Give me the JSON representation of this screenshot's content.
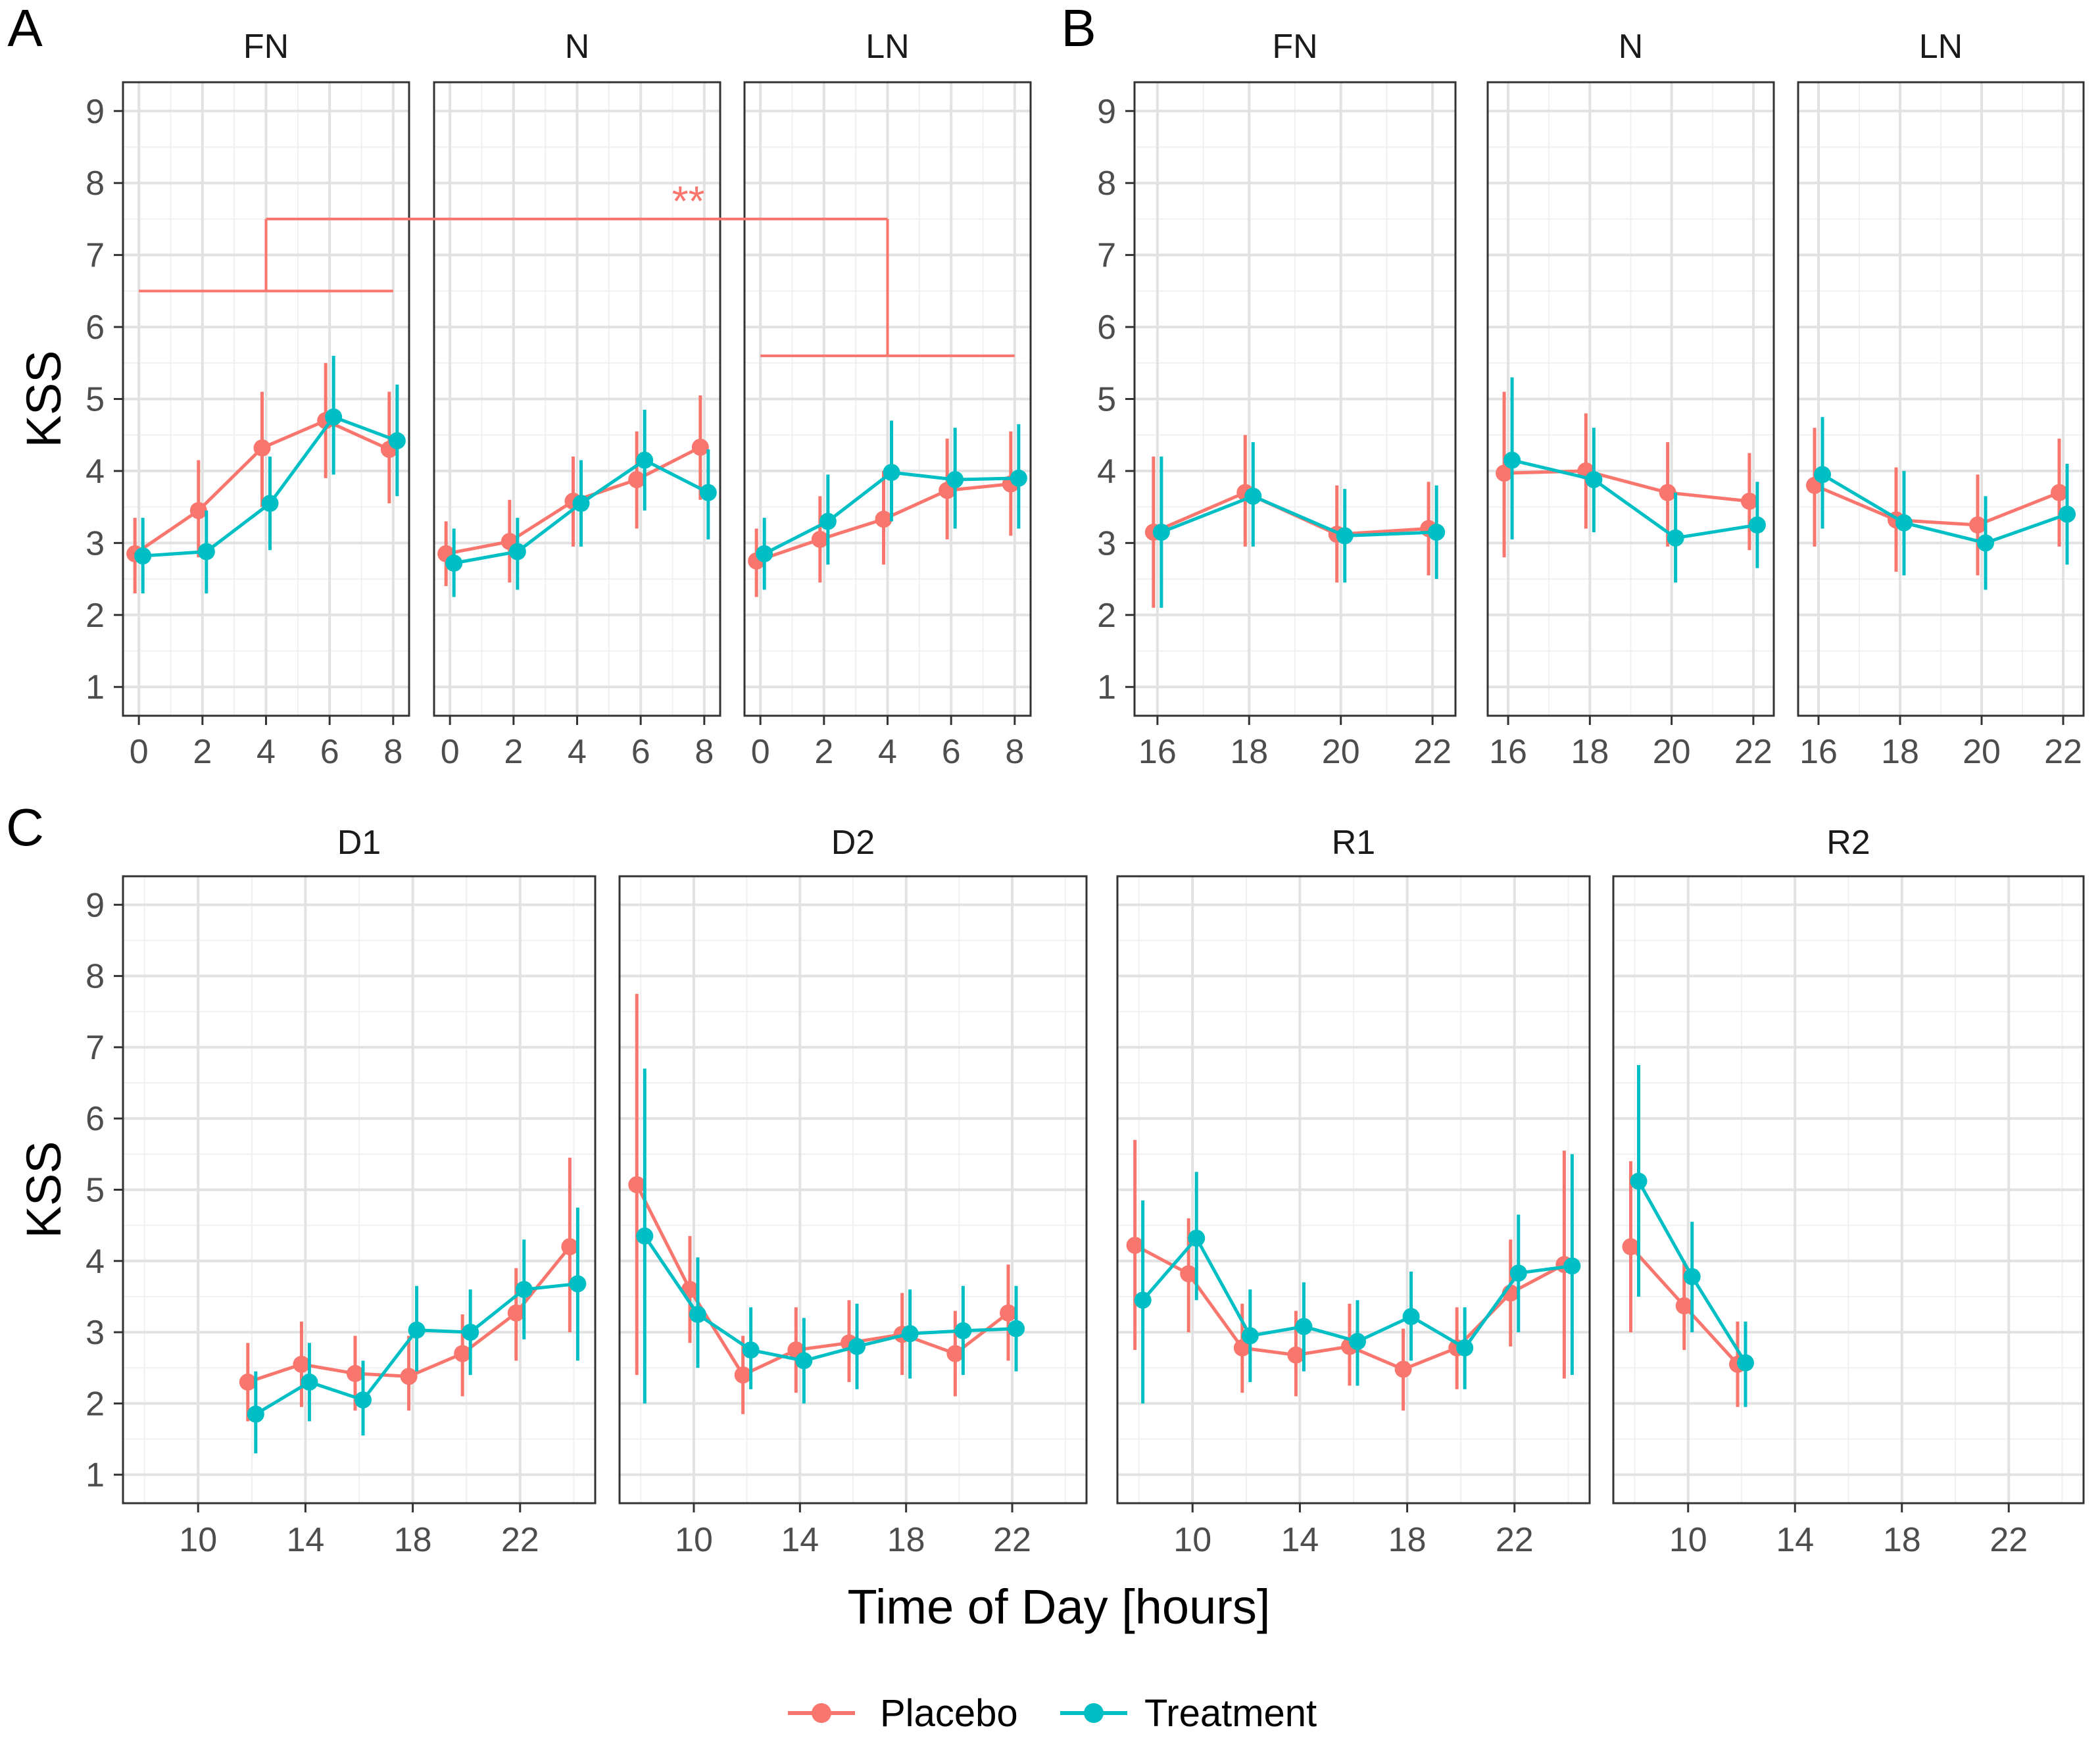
{
  "colors": {
    "placebo": "#F8766D",
    "treatment": "#00BFC4",
    "annotation": "#F8766D"
  },
  "legend": {
    "placebo": "Placebo",
    "treatment": "Treatment"
  },
  "y_axis": {
    "title": "KSS",
    "ticks": [
      "1",
      "2",
      "3",
      "4",
      "5",
      "6",
      "7",
      "8",
      "9"
    ]
  },
  "x_axis_title": "Time of Day [hours]",
  "chart_data": [
    {
      "type": "line",
      "panel": "A",
      "ylabel": "KSS",
      "ylim": [
        0.6,
        9.4
      ],
      "xlim": [
        -0.5,
        8.5
      ],
      "x_ticks": [
        0,
        2,
        4,
        6,
        8
      ],
      "facets": [
        {
          "name": "FN",
          "x": [
            0,
            2,
            4,
            6,
            8
          ],
          "series": [
            {
              "name": "Placebo",
              "values": [
                2.85,
                3.45,
                4.32,
                4.7,
                4.3
              ],
              "lower": [
                2.3,
                2.8,
                3.5,
                3.9,
                3.55
              ],
              "upper": [
                3.35,
                4.15,
                5.1,
                5.5,
                5.1
              ]
            },
            {
              "name": "Treatment",
              "values": [
                2.82,
                2.88,
                3.55,
                4.75,
                4.42
              ],
              "lower": [
                2.3,
                2.3,
                2.9,
                3.95,
                3.65
              ],
              "upper": [
                3.35,
                3.45,
                4.2,
                5.6,
                5.2
              ]
            }
          ]
        },
        {
          "name": "N",
          "x": [
            0,
            2,
            4,
            6,
            8
          ],
          "series": [
            {
              "name": "Placebo",
              "values": [
                2.85,
                3.02,
                3.58,
                3.88,
                4.33
              ],
              "lower": [
                2.4,
                2.45,
                2.95,
                3.2,
                3.6
              ],
              "upper": [
                3.3,
                3.6,
                4.2,
                4.55,
                5.05
              ]
            },
            {
              "name": "Treatment",
              "values": [
                2.72,
                2.88,
                3.55,
                4.15,
                3.7
              ],
              "lower": [
                2.25,
                2.35,
                2.95,
                3.45,
                3.05
              ],
              "upper": [
                3.2,
                3.35,
                4.15,
                4.85,
                4.3
              ]
            }
          ]
        },
        {
          "name": "LN",
          "x": [
            0,
            2,
            4,
            6,
            8
          ],
          "series": [
            {
              "name": "Placebo",
              "values": [
                2.75,
                3.05,
                3.33,
                3.73,
                3.82
              ],
              "lower": [
                2.25,
                2.45,
                2.7,
                3.05,
                3.1
              ],
              "upper": [
                3.2,
                3.65,
                4.0,
                4.45,
                4.55
              ]
            },
            {
              "name": "Treatment",
              "values": [
                2.85,
                3.3,
                3.98,
                3.88,
                3.9
              ],
              "lower": [
                2.35,
                2.7,
                3.3,
                3.2,
                3.2
              ],
              "upper": [
                3.35,
                3.95,
                4.7,
                4.6,
                4.65
              ]
            }
          ]
        }
      ],
      "annotations": [
        {
          "type": "bracket",
          "facet": "FN",
          "x_from": 0,
          "x_to": 8,
          "y": 6.5,
          "stem_x": 4,
          "stem_to": 7.5
        },
        {
          "type": "bracket",
          "facet": "LN",
          "x_from": 0,
          "x_to": 8,
          "y": 5.6,
          "stem_x": 4,
          "stem_to": 7.5
        },
        {
          "type": "span",
          "y": 7.5,
          "from_facet": "FN",
          "from_x": 4,
          "to_facet": "LN",
          "to_x": 4
        },
        {
          "type": "text",
          "text": "**",
          "facet": "N",
          "x": 7.5,
          "y": 7.75
        }
      ]
    },
    {
      "type": "line",
      "panel": "B",
      "ylabel": "",
      "ylim": [
        0.6,
        9.4
      ],
      "xlim": [
        15.5,
        22.5
      ],
      "x_ticks": [
        16,
        18,
        20,
        22
      ],
      "facets": [
        {
          "name": "FN",
          "x": [
            16,
            18,
            20,
            22
          ],
          "series": [
            {
              "name": "Placebo",
              "values": [
                3.15,
                3.7,
                3.12,
                3.2
              ],
              "lower": [
                2.1,
                2.95,
                2.45,
                2.55
              ],
              "upper": [
                4.2,
                4.5,
                3.8,
                3.85
              ]
            },
            {
              "name": "Treatment",
              "values": [
                3.15,
                3.65,
                3.1,
                3.15
              ],
              "lower": [
                2.1,
                2.95,
                2.45,
                2.5
              ],
              "upper": [
                4.2,
                4.4,
                3.75,
                3.8
              ]
            }
          ]
        },
        {
          "name": "N",
          "x": [
            16,
            18,
            20,
            22
          ],
          "series": [
            {
              "name": "Placebo",
              "values": [
                3.97,
                4.0,
                3.7,
                3.58
              ],
              "lower": [
                2.8,
                3.2,
                2.95,
                2.9
              ],
              "upper": [
                5.1,
                4.8,
                4.4,
                4.25
              ]
            },
            {
              "name": "Treatment",
              "values": [
                4.15,
                3.88,
                3.07,
                3.25
              ],
              "lower": [
                3.05,
                3.15,
                2.45,
                2.65
              ],
              "upper": [
                5.3,
                4.6,
                3.7,
                3.85
              ]
            }
          ]
        },
        {
          "name": "LN",
          "x": [
            16,
            18,
            20,
            22
          ],
          "series": [
            {
              "name": "Placebo",
              "values": [
                3.8,
                3.32,
                3.25,
                3.7
              ],
              "lower": [
                2.95,
                2.6,
                2.55,
                2.95
              ],
              "upper": [
                4.6,
                4.05,
                3.95,
                4.45
              ]
            },
            {
              "name": "Treatment",
              "values": [
                3.95,
                3.28,
                3.0,
                3.4
              ],
              "lower": [
                3.2,
                2.55,
                2.35,
                2.7
              ],
              "upper": [
                4.75,
                4.0,
                3.65,
                4.1
              ]
            }
          ]
        }
      ]
    },
    {
      "type": "line",
      "panel": "C",
      "ylabel": "KSS",
      "xlabel": "Time of Day [hours]",
      "ylim": [
        0.6,
        9.4
      ],
      "xlim": [
        7.2,
        24.8
      ],
      "x_ticks": [
        10,
        14,
        18,
        22
      ],
      "facets": [
        {
          "name": "D1",
          "x": [
            12,
            14,
            16,
            18,
            20,
            22,
            24
          ],
          "series": [
            {
              "name": "Placebo",
              "values": [
                2.3,
                2.55,
                2.42,
                2.38,
                2.7,
                3.27,
                4.2
              ],
              "lower": [
                1.75,
                1.95,
                1.9,
                1.9,
                2.1,
                2.6,
                3.0
              ],
              "upper": [
                2.85,
                3.15,
                2.95,
                2.95,
                3.25,
                3.9,
                5.45
              ]
            },
            {
              "name": "Treatment",
              "values": [
                1.85,
                2.3,
                2.05,
                3.03,
                3.0,
                3.6,
                3.68
              ],
              "lower": [
                1.3,
                1.75,
                1.55,
                2.45,
                2.4,
                2.9,
                2.6
              ],
              "upper": [
                2.45,
                2.85,
                2.6,
                3.65,
                3.6,
                4.3,
                4.75
              ]
            }
          ]
        },
        {
          "name": "D2",
          "x": [
            8,
            10,
            12,
            14,
            16,
            18,
            20,
            22
          ],
          "series": [
            {
              "name": "Placebo",
              "values": [
                5.07,
                3.6,
                2.4,
                2.75,
                2.85,
                2.97,
                2.7,
                3.27
              ],
              "lower": [
                2.4,
                2.85,
                1.85,
                2.15,
                2.3,
                2.4,
                2.1,
                2.6
              ],
              "upper": [
                7.75,
                4.35,
                2.95,
                3.35,
                3.45,
                3.55,
                3.3,
                3.95
              ]
            },
            {
              "name": "Treatment",
              "values": [
                4.35,
                3.25,
                2.75,
                2.6,
                2.8,
                2.98,
                3.02,
                3.05
              ],
              "lower": [
                2.0,
                2.5,
                2.2,
                2.0,
                2.2,
                2.35,
                2.4,
                2.45
              ],
              "upper": [
                6.7,
                4.05,
                3.35,
                3.2,
                3.4,
                3.6,
                3.65,
                3.65
              ]
            }
          ]
        },
        {
          "name": "R1",
          "x": [
            8,
            10,
            12,
            14,
            16,
            18,
            20,
            22,
            24
          ],
          "series": [
            {
              "name": "Placebo",
              "values": [
                4.22,
                3.82,
                2.78,
                2.68,
                2.8,
                2.48,
                2.78,
                3.55,
                3.95
              ],
              "lower": [
                2.75,
                3.0,
                2.15,
                2.1,
                2.25,
                1.9,
                2.2,
                2.8,
                2.35
              ],
              "upper": [
                5.7,
                4.6,
                3.4,
                3.3,
                3.4,
                3.05,
                3.35,
                4.3,
                5.55
              ]
            },
            {
              "name": "Treatment",
              "values": [
                3.45,
                4.32,
                2.95,
                3.08,
                2.87,
                3.22,
                2.78,
                3.83,
                3.93
              ],
              "lower": [
                2.0,
                3.45,
                2.3,
                2.45,
                2.25,
                2.6,
                2.2,
                3.0,
                2.4
              ],
              "upper": [
                4.85,
                5.25,
                3.6,
                3.7,
                3.45,
                3.85,
                3.35,
                4.65,
                5.5
              ]
            }
          ]
        },
        {
          "name": "R2",
          "x": [
            8,
            10,
            12
          ],
          "series": [
            {
              "name": "Placebo",
              "values": [
                4.2,
                3.37,
                2.55
              ],
              "lower": [
                3.0,
                2.75,
                1.95
              ],
              "upper": [
                5.4,
                4.0,
                3.15
              ]
            },
            {
              "name": "Treatment",
              "values": [
                5.12,
                3.78,
                2.57
              ],
              "lower": [
                3.5,
                3.0,
                1.95
              ],
              "upper": [
                6.75,
                4.55,
                3.15
              ]
            }
          ]
        }
      ]
    }
  ]
}
